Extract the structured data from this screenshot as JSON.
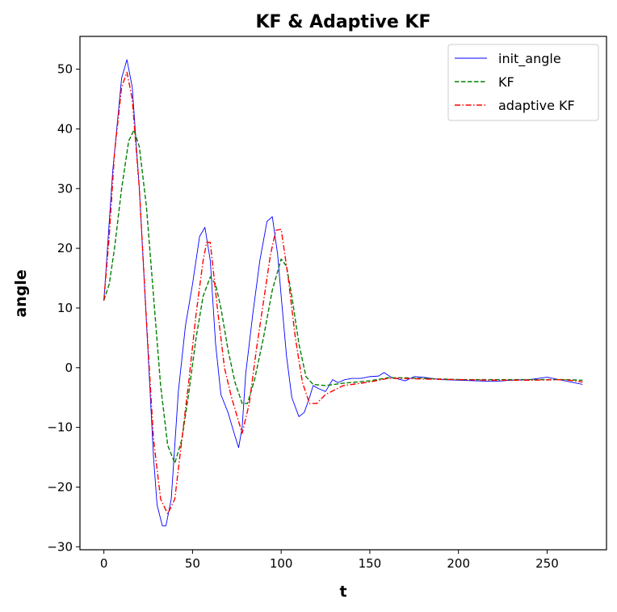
{
  "chart_data": {
    "type": "line",
    "title": "KF & Adaptive KF",
    "xlabel": "t",
    "ylabel": "angle",
    "xlim": [
      -13.5,
      283.5
    ],
    "ylim": [
      -30.5,
      55.5
    ],
    "xticks": [
      0,
      50,
      100,
      150,
      200,
      250
    ],
    "yticks": [
      -30,
      -20,
      -10,
      0,
      10,
      20,
      30,
      40,
      50
    ],
    "grid": false,
    "legend_position": "top-right",
    "series": [
      {
        "name": "init_angle",
        "color": "#0000ff",
        "style": "solid",
        "x": [
          0,
          5,
          10,
          13,
          16,
          20,
          25,
          28,
          30,
          33,
          35,
          38,
          42,
          46,
          50,
          54,
          57,
          60,
          63,
          66,
          70,
          74,
          76,
          78,
          80,
          84,
          88,
          92,
          95,
          98,
          100,
          103,
          106,
          110,
          113,
          116,
          118,
          121,
          125,
          129,
          132,
          136,
          140,
          145,
          150,
          155,
          158,
          162,
          170,
          175,
          180,
          190,
          200,
          210,
          220,
          230,
          240,
          250,
          260,
          270
        ],
        "y": [
          11.2,
          33,
          48.5,
          51.6,
          47,
          30,
          2,
          -15,
          -23,
          -26.5,
          -26.5,
          -22,
          -4,
          7,
          14,
          22,
          23.5,
          18,
          4,
          -4.5,
          -7.5,
          -11.5,
          -13.4,
          -10,
          -1,
          9,
          18,
          24.5,
          25.3,
          19,
          12,
          2,
          -5,
          -8.2,
          -7.5,
          -5,
          -3,
          -3.5,
          -4,
          -2,
          -2.5,
          -2,
          -1.8,
          -1.8,
          -1.5,
          -1.4,
          -0.8,
          -1.6,
          -2.2,
          -1.5,
          -1.6,
          -2,
          -2.1,
          -2.2,
          -2.3,
          -2.1,
          -2,
          -1.6,
          -2.2,
          -2.8
        ]
      },
      {
        "name": "KF",
        "color": "#008000",
        "style": "dashed",
        "x": [
          0,
          3,
          6,
          10,
          14,
          17,
          20,
          24,
          28,
          32,
          36,
          40,
          44,
          48,
          52,
          56,
          60,
          63,
          66,
          70,
          74,
          78,
          81,
          85,
          90,
          95,
          100,
          103,
          106,
          110,
          114,
          118,
          125,
          135,
          150,
          160,
          170,
          180,
          200,
          220,
          240,
          260,
          270
        ],
        "y": [
          11.3,
          14,
          20,
          30,
          38,
          39.8,
          37,
          27,
          12,
          -3,
          -13,
          -16,
          -12,
          -4,
          5,
          12,
          15.2,
          14,
          10,
          3,
          -2.5,
          -6,
          -6,
          -2,
          5,
          13,
          18.2,
          17,
          12,
          4,
          -1.5,
          -2.8,
          -3,
          -2.6,
          -2.2,
          -1.7,
          -1.7,
          -1.8,
          -2,
          -2,
          -2,
          -2,
          -2.1
        ]
      },
      {
        "name": "adaptive KF",
        "color": "#ff0000",
        "style": "dashdot",
        "x": [
          0,
          3,
          6,
          10,
          13,
          16,
          20,
          24,
          28,
          32,
          36,
          40,
          44,
          48,
          52,
          56,
          58,
          60,
          64,
          68,
          72,
          75,
          78,
          82,
          86,
          90,
          94,
          97,
          100,
          104,
          108,
          112,
          116,
          120,
          125,
          135,
          150,
          160,
          170,
          180,
          200,
          220,
          240,
          260,
          270
        ],
        "y": [
          11.3,
          22,
          36,
          47,
          49.5,
          45,
          30,
          8,
          -12,
          -22,
          -24.5,
          -22,
          -12,
          -2,
          9,
          18,
          21,
          21,
          10,
          0,
          -5,
          -8,
          -11,
          -6,
          3,
          11,
          19,
          23,
          23.2,
          15,
          5,
          -2.5,
          -6,
          -6,
          -4.5,
          -3,
          -2.4,
          -1.8,
          -1.8,
          -1.9,
          -2,
          -2.1,
          -2.1,
          -2,
          -2.4
        ]
      }
    ]
  }
}
